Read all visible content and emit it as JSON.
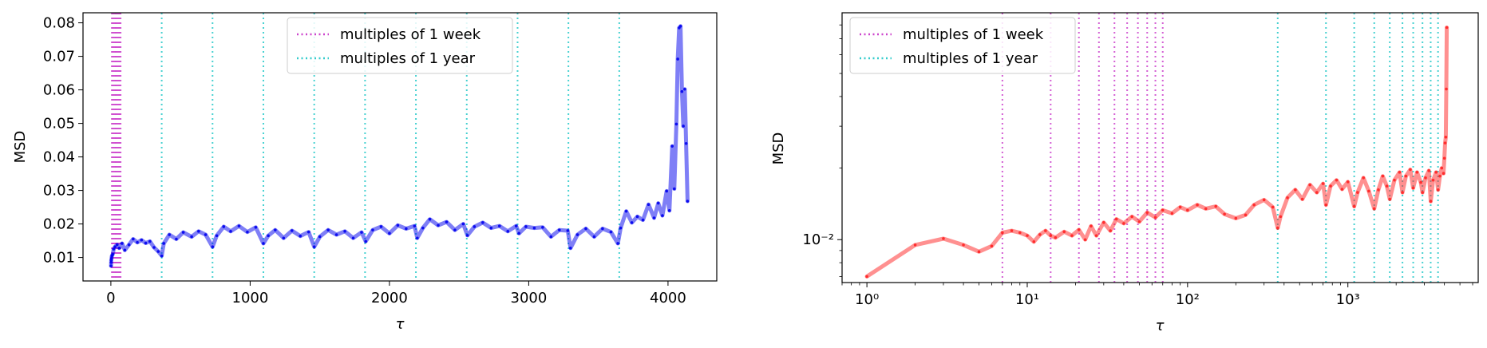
{
  "chart_data": [
    {
      "type": "line",
      "xscale": "linear",
      "yscale": "linear",
      "xlabel": "τ",
      "ylabel": "MSD",
      "xlim": [
        -200,
        4350
      ],
      "ylim": [
        0.003,
        0.083
      ],
      "xticks": [
        0,
        1000,
        2000,
        3000,
        4000
      ],
      "xtick_labels": [
        "0",
        "1000",
        "2000",
        "3000",
        "4000"
      ],
      "yticks": [
        0.01,
        0.02,
        0.03,
        0.04,
        0.05,
        0.06,
        0.07,
        0.08
      ],
      "ytick_labels": [
        "0.01",
        "0.02",
        "0.03",
        "0.04",
        "0.05",
        "0.06",
        "0.07",
        "0.08"
      ],
      "legend": {
        "placement": "upper center",
        "entries": [
          {
            "label": "multiples of 1 week",
            "color": "#cc44cc"
          },
          {
            "label": "multiples of 1 year",
            "color": "#33cccc"
          }
        ]
      },
      "series_color": "#0000ee",
      "series": [
        {
          "x": [
            1,
            2,
            3,
            5,
            7,
            10,
            14,
            20,
            30,
            45,
            60,
            80,
            100,
            130,
            160,
            190,
            220,
            250,
            280,
            310,
            340,
            365,
            380,
            420,
            470,
            520,
            580,
            630,
            680,
            730,
            760,
            810,
            860,
            920,
            980,
            1040,
            1095,
            1130,
            1180,
            1240,
            1300,
            1360,
            1420,
            1460,
            1500,
            1560,
            1620,
            1680,
            1740,
            1800,
            1830,
            1880,
            1940,
            2000,
            2060,
            2120,
            2180,
            2200,
            2240,
            2290,
            2350,
            2410,
            2470,
            2530,
            2560,
            2610,
            2670,
            2730,
            2790,
            2850,
            2910,
            2930,
            2980,
            3040,
            3100,
            3160,
            3220,
            3280,
            3300,
            3350,
            3410,
            3470,
            3530,
            3590,
            3640,
            3660,
            3700,
            3740,
            3780,
            3820,
            3860,
            3900,
            3930,
            3960,
            3990,
            4010,
            4030,
            4045,
            4060,
            4070,
            4080,
            4090,
            4100,
            4110,
            4120,
            4130,
            4140
          ],
          "y": [
            0.0075,
            0.0085,
            0.0092,
            0.0098,
            0.0104,
            0.0107,
            0.011,
            0.0125,
            0.0132,
            0.0138,
            0.0128,
            0.0142,
            0.0122,
            0.0138,
            0.0155,
            0.0145,
            0.0152,
            0.0143,
            0.0148,
            0.013,
            0.0118,
            0.0105,
            0.0142,
            0.0168,
            0.0155,
            0.0175,
            0.0162,
            0.0178,
            0.0168,
            0.0132,
            0.0165,
            0.0192,
            0.0178,
            0.0194,
            0.0176,
            0.019,
            0.0142,
            0.0165,
            0.0182,
            0.0158,
            0.018,
            0.0164,
            0.0176,
            0.0132,
            0.0162,
            0.0182,
            0.0168,
            0.0178,
            0.0158,
            0.0175,
            0.0148,
            0.0182,
            0.0192,
            0.0172,
            0.0196,
            0.0186,
            0.0194,
            0.0158,
            0.0188,
            0.0214,
            0.0196,
            0.0206,
            0.0182,
            0.02,
            0.0166,
            0.0192,
            0.0204,
            0.0188,
            0.0194,
            0.0178,
            0.0194,
            0.0172,
            0.0192,
            0.0188,
            0.019,
            0.0162,
            0.0182,
            0.018,
            0.0128,
            0.0168,
            0.0186,
            0.0162,
            0.0186,
            0.0176,
            0.0142,
            0.0188,
            0.0238,
            0.0204,
            0.0222,
            0.0212,
            0.0258,
            0.0218,
            0.0262,
            0.0225,
            0.0298,
            0.024,
            0.0432,
            0.0305,
            0.0498,
            0.0692,
            0.0785,
            0.079,
            0.0595,
            0.0492,
            0.0602,
            0.044,
            0.0268
          ]
        }
      ],
      "vlines_week_count": 10,
      "vlines_year": [
        365,
        730,
        1095,
        1460,
        1825,
        2190,
        2555,
        2920,
        3285,
        3650
      ]
    },
    {
      "type": "line",
      "xscale": "log",
      "yscale": "log",
      "xlabel": "τ",
      "ylabel": "MSD",
      "xlim": [
        0.7,
        6500
      ],
      "ylim": [
        0.0066,
        0.09
      ],
      "xticks": [
        1,
        10,
        100,
        1000
      ],
      "xtick_labels": [
        "10⁰",
        "10¹",
        "10²",
        "10³"
      ],
      "yticks": [
        0.01
      ],
      "ytick_labels": [
        "10⁻²"
      ],
      "legend": {
        "placement": "upper left",
        "entries": [
          {
            "label": "multiples of 1 week",
            "color": "#cc44cc"
          },
          {
            "label": "multiples of 1 year",
            "color": "#33cccc"
          }
        ]
      },
      "series_color": "#ff2222",
      "series": [
        {
          "x": [
            1,
            2,
            3,
            4,
            5,
            6,
            7,
            8,
            9,
            10,
            11,
            12,
            13,
            14,
            15,
            17,
            19,
            21,
            23,
            25,
            27,
            30,
            33,
            36,
            40,
            45,
            50,
            56,
            63,
            70,
            80,
            90,
            100,
            115,
            130,
            150,
            170,
            200,
            230,
            260,
            300,
            340,
            365,
            380,
            420,
            470,
            520,
            580,
            640,
            700,
            730,
            780,
            850,
            920,
            1000,
            1095,
            1150,
            1250,
            1350,
            1460,
            1550,
            1650,
            1750,
            1825,
            1950,
            2100,
            2190,
            2300,
            2450,
            2555,
            2700,
            2850,
            2920,
            3050,
            3200,
            3285,
            3400,
            3550,
            3650,
            3750,
            3850,
            3950,
            4000,
            4040,
            4080,
            4110,
            4140
          ],
          "y": [
            0.007,
            0.0095,
            0.0101,
            0.0095,
            0.0089,
            0.0094,
            0.0107,
            0.0109,
            0.0107,
            0.0104,
            0.0098,
            0.0105,
            0.0109,
            0.0104,
            0.0102,
            0.0108,
            0.0104,
            0.011,
            0.01,
            0.0114,
            0.0104,
            0.0118,
            0.0109,
            0.0122,
            0.0117,
            0.0125,
            0.0119,
            0.013,
            0.0124,
            0.0133,
            0.0129,
            0.0137,
            0.0133,
            0.014,
            0.0135,
            0.0138,
            0.0128,
            0.0123,
            0.0127,
            0.014,
            0.0147,
            0.0137,
            0.0112,
            0.0125,
            0.015,
            0.0162,
            0.0148,
            0.017,
            0.0158,
            0.0172,
            0.014,
            0.0168,
            0.0178,
            0.0163,
            0.0175,
            0.0138,
            0.0158,
            0.0182,
            0.016,
            0.0135,
            0.0162,
            0.0185,
            0.0168,
            0.0148,
            0.0178,
            0.0192,
            0.0158,
            0.0185,
            0.0197,
            0.0165,
            0.0192,
            0.0174,
            0.0158,
            0.0182,
            0.0195,
            0.0145,
            0.0178,
            0.0192,
            0.0162,
            0.0185,
            0.02,
            0.019,
            0.022,
            0.0255,
            0.027,
            0.043,
            0.078
          ]
        }
      ],
      "vlines_week": [
        7,
        14,
        21,
        28,
        35,
        42,
        49,
        56,
        63,
        70
      ],
      "vlines_year": [
        365,
        730,
        1095,
        1460,
        1825,
        2190,
        2555,
        2920,
        3285,
        3650
      ]
    }
  ]
}
